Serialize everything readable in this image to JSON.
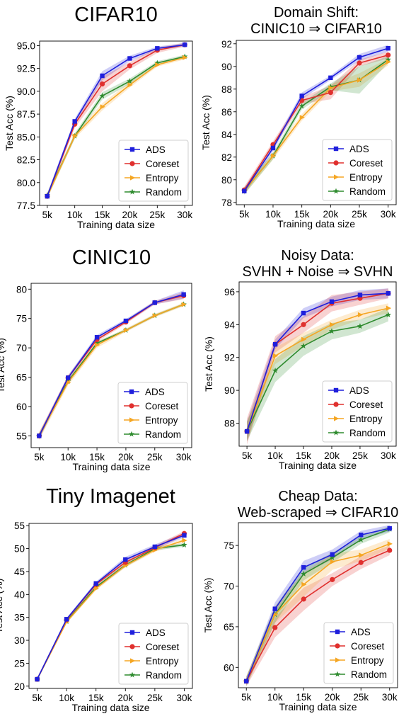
{
  "chart_data": [
    {
      "type": "line",
      "title": "CIFAR10",
      "xlabel": "Training data size",
      "ylabel": "Test Acc (%)",
      "categories": [
        "5k",
        "10k",
        "15k",
        "20k",
        "25k",
        "30k"
      ],
      "ylim": [
        77.5,
        95.5
      ],
      "yticks": [
        "77.5",
        "80.0",
        "82.5",
        "85.0",
        "87.5",
        "90.0",
        "92.5",
        "95.0"
      ],
      "legend_position": "lower-right",
      "series": [
        {
          "name": "ADS",
          "color": "#1f1fdc",
          "marker": "square",
          "values": [
            78.5,
            86.7,
            91.7,
            93.6,
            94.7,
            95.1
          ],
          "band": [
            0.3,
            0.3,
            0.5,
            0.3,
            0.2,
            0.2
          ]
        },
        {
          "name": "Coreset",
          "color": "#e0302e",
          "marker": "circle",
          "values": [
            78.5,
            86.4,
            90.8,
            92.8,
            94.5,
            95.1
          ],
          "band": [
            0.3,
            0.4,
            0.8,
            0.4,
            0.3,
            0.2
          ]
        },
        {
          "name": "Entropy",
          "color": "#f5a623",
          "marker": "tri",
          "values": [
            78.5,
            85.1,
            88.3,
            90.7,
            92.9,
            93.7
          ],
          "band": [
            0.3,
            0.3,
            0.4,
            0.3,
            0.2,
            0.2
          ]
        },
        {
          "name": "Random",
          "color": "#2e8b2e",
          "marker": "star",
          "values": [
            78.6,
            85.1,
            89.5,
            91.1,
            93.1,
            93.8
          ],
          "band": [
            0.3,
            0.3,
            0.4,
            0.3,
            0.2,
            0.2
          ]
        }
      ]
    },
    {
      "type": "line",
      "title": "Domain Shift:",
      "subtitle": "CINIC10 ⇒ CIFAR10",
      "xlabel": "Training data size",
      "ylabel": "Test Acc (%)",
      "categories": [
        "5k",
        "10k",
        "15k",
        "20k",
        "25k",
        "30k"
      ],
      "ylim": [
        77.8,
        92.3
      ],
      "yticks": [
        "78",
        "80",
        "82",
        "84",
        "86",
        "88",
        "90",
        "92"
      ],
      "legend_position": "lower-right",
      "series": [
        {
          "name": "ADS",
          "color": "#1f1fdc",
          "marker": "square",
          "values": [
            79.0,
            82.8,
            87.4,
            89.0,
            90.8,
            91.6
          ],
          "band": [
            0.3,
            0.3,
            0.3,
            0.2,
            0.3,
            0.3
          ]
        },
        {
          "name": "Coreset",
          "color": "#e0302e",
          "marker": "circle",
          "values": [
            79.1,
            83.1,
            87.0,
            87.7,
            90.3,
            91.0
          ],
          "band": [
            0.3,
            0.3,
            0.3,
            0.6,
            0.3,
            0.3
          ]
        },
        {
          "name": "Entropy",
          "color": "#f5a623",
          "marker": "tri",
          "values": [
            79.0,
            82.1,
            85.5,
            88.1,
            88.8,
            90.4
          ],
          "band": [
            0.3,
            0.3,
            0.3,
            0.3,
            0.6,
            0.3
          ]
        },
        {
          "name": "Random",
          "color": "#2e8b2e",
          "marker": "star",
          "values": [
            79.0,
            82.1,
            86.5,
            88.2,
            88.8,
            90.6
          ],
          "band": [
            0.3,
            0.3,
            0.3,
            0.3,
            1.2,
            0.3
          ]
        }
      ]
    },
    {
      "type": "line",
      "title": "CINIC10",
      "xlabel": "Training data size",
      "ylabel": "Test Acc (%)",
      "categories": [
        "5k",
        "10k",
        "15k",
        "20k",
        "25k",
        "30k"
      ],
      "ylim": [
        53.0,
        81.0
      ],
      "yticks": [
        "55",
        "60",
        "65",
        "70",
        "75",
        "80"
      ],
      "legend_position": "lower-right",
      "series": [
        {
          "name": "ADS",
          "color": "#1f1fdc",
          "marker": "square",
          "values": [
            55.0,
            64.9,
            71.8,
            74.6,
            77.7,
            79.1
          ],
          "band": [
            0.5,
            0.4,
            0.4,
            0.3,
            0.3,
            0.7
          ]
        },
        {
          "name": "Coreset",
          "color": "#e0302e",
          "marker": "circle",
          "values": [
            55.0,
            64.9,
            71.4,
            74.4,
            77.7,
            78.9
          ],
          "band": [
            0.6,
            0.4,
            0.4,
            0.3,
            0.3,
            0.6
          ]
        },
        {
          "name": "Entropy",
          "color": "#f5a623",
          "marker": "tri",
          "values": [
            55.0,
            64.1,
            70.5,
            73.0,
            75.5,
            77.4
          ],
          "band": [
            0.7,
            0.5,
            0.5,
            0.3,
            0.3,
            0.3
          ]
        },
        {
          "name": "Random",
          "color": "#2e8b2e",
          "marker": "star",
          "values": [
            55.0,
            64.3,
            70.8,
            73.0,
            75.5,
            77.4
          ],
          "band": [
            0.4,
            0.3,
            0.3,
            0.2,
            0.2,
            0.2
          ]
        }
      ]
    },
    {
      "type": "line",
      "title": "Noisy Data:",
      "subtitle": "SVHN + Noise ⇒ SVHN",
      "xlabel": "Training data size",
      "ylabel": "Test Acc (%)",
      "categories": [
        "5k",
        "10k",
        "15k",
        "20k",
        "25k",
        "30k"
      ],
      "ylim": [
        86.6,
        96.6
      ],
      "yticks": [
        "88",
        "90",
        "92",
        "94",
        "96"
      ],
      "legend_position": "lower-right",
      "series": [
        {
          "name": "ADS",
          "color": "#1f1fdc",
          "marker": "square",
          "values": [
            87.5,
            92.8,
            94.7,
            95.4,
            95.8,
            95.9
          ],
          "band": [
            0.6,
            0.3,
            0.3,
            0.3,
            0.3,
            0.3
          ]
        },
        {
          "name": "Coreset",
          "color": "#e0302e",
          "marker": "circle",
          "values": [
            87.5,
            92.8,
            94.0,
            95.3,
            95.6,
            95.9
          ],
          "band": [
            0.8,
            0.5,
            0.5,
            0.5,
            0.4,
            0.3
          ]
        },
        {
          "name": "Entropy",
          "color": "#f5a623",
          "marker": "tri",
          "values": [
            87.5,
            92.1,
            93.1,
            94.0,
            94.6,
            95.0
          ],
          "band": [
            0.6,
            0.5,
            0.4,
            0.3,
            0.3,
            0.3
          ]
        },
        {
          "name": "Random",
          "color": "#2e8b2e",
          "marker": "star",
          "values": [
            87.5,
            91.2,
            92.7,
            93.6,
            93.9,
            94.6
          ],
          "band": [
            0.6,
            0.7,
            0.6,
            0.5,
            0.4,
            0.4
          ]
        }
      ]
    },
    {
      "type": "line",
      "title": "Tiny Imagenet",
      "xlabel": "Training data size",
      "ylabel": "Test Acc (%)",
      "categories": [
        "5k",
        "10k",
        "15k",
        "20k",
        "25k",
        "30k"
      ],
      "ylim": [
        19.5,
        55.5
      ],
      "yticks": [
        "20",
        "25",
        "30",
        "35",
        "40",
        "45",
        "50",
        "55"
      ],
      "legend_position": "lower-right",
      "series": [
        {
          "name": "ADS",
          "color": "#1f1fdc",
          "marker": "square",
          "values": [
            21.5,
            34.6,
            42.4,
            47.6,
            50.4,
            52.9
          ],
          "band": [
            0.3,
            0.3,
            0.4,
            0.6,
            0.5,
            0.5
          ]
        },
        {
          "name": "Coreset",
          "color": "#e0302e",
          "marker": "circle",
          "values": [
            21.5,
            34.5,
            42.2,
            47.0,
            50.2,
            53.3
          ],
          "band": [
            0.3,
            0.3,
            0.4,
            0.6,
            0.5,
            0.5
          ]
        },
        {
          "name": "Entropy",
          "color": "#f5a623",
          "marker": "tri",
          "values": [
            21.5,
            34.0,
            41.3,
            46.3,
            49.7,
            51.8
          ],
          "band": [
            0.3,
            0.3,
            0.4,
            0.4,
            0.4,
            0.4
          ]
        },
        {
          "name": "Random",
          "color": "#2e8b2e",
          "marker": "star",
          "values": [
            21.5,
            34.1,
            41.6,
            46.4,
            50.0,
            50.8
          ],
          "band": [
            0.3,
            0.3,
            0.4,
            0.4,
            0.4,
            0.4
          ]
        }
      ]
    },
    {
      "type": "line",
      "title": "Cheap Data:",
      "subtitle": "Web-scraped ⇒  CIFAR10",
      "xlabel": "Training data size",
      "ylabel": "Test Acc (%)",
      "categories": [
        "5k",
        "10k",
        "15k",
        "20k",
        "25k",
        "30k"
      ],
      "ylim": [
        57.5,
        77.8
      ],
      "yticks": [
        "60",
        "65",
        "70",
        "75"
      ],
      "legend_position": "lower-right",
      "series": [
        {
          "name": "ADS",
          "color": "#1f1fdc",
          "marker": "square",
          "values": [
            58.3,
            67.2,
            72.3,
            73.9,
            76.3,
            77.1
          ],
          "band": [
            0.5,
            0.8,
            0.8,
            0.6,
            0.5,
            0.4
          ]
        },
        {
          "name": "Coreset",
          "color": "#e0302e",
          "marker": "circle",
          "values": [
            58.3,
            64.9,
            68.4,
            70.8,
            72.9,
            74.4
          ],
          "band": [
            0.6,
            1.2,
            1.4,
            0.8,
            0.8,
            0.6
          ]
        },
        {
          "name": "Entropy",
          "color": "#f5a623",
          "marker": "tri",
          "values": [
            58.3,
            66.5,
            70.2,
            73.0,
            73.8,
            75.2
          ],
          "band": [
            0.6,
            1.0,
            1.5,
            1.0,
            0.7,
            0.6
          ]
        },
        {
          "name": "Random",
          "color": "#2e8b2e",
          "marker": "star",
          "values": [
            58.3,
            66.5,
            71.5,
            73.5,
            75.7,
            77.0
          ],
          "band": [
            0.6,
            1.0,
            0.8,
            0.6,
            0.5,
            0.4
          ]
        }
      ]
    }
  ]
}
